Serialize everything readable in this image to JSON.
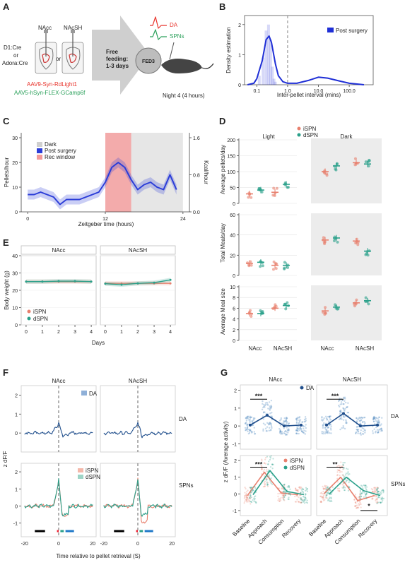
{
  "panels": {
    "A": {
      "letter": "A",
      "left_label": "D1:Cre",
      "or1": "or",
      "adora": "Adora:Cre",
      "nacc": "NAcc",
      "or2": "or",
      "nacsh": "NAcSH",
      "free_feeding": "Free\nfeeding:\n1-3 days",
      "fed3": "FED3",
      "da_label": "DA",
      "spns_label": "SPNs",
      "virus1": "AAV9-Syn-RdLight1",
      "virus2": "AAV5-hSyn-FLEX-GCamp6f",
      "night": "Night 4 (4 hours)",
      "colors": {
        "da": "#e8322a",
        "spn": "#2aa05a"
      }
    },
    "B": {
      "letter": "B"
    },
    "C": {
      "letter": "C"
    },
    "D": {
      "letter": "D"
    },
    "E": {
      "letter": "E"
    },
    "F": {
      "letter": "F"
    },
    "G": {
      "letter": "G"
    }
  },
  "chart_data": [
    {
      "id": "B",
      "type": "line",
      "xlabel": "Inter-pellet interval (mins)",
      "ylabel": "Density estimation",
      "xscale": "log",
      "xticks": [
        "0.1",
        "1.0",
        "10.0",
        "100.0"
      ],
      "yticks": [
        "0",
        "1",
        "2"
      ],
      "ylim": [
        0,
        2.3
      ],
      "legend": [
        "Post surgery"
      ],
      "legend_position": "top-right",
      "reference_line_x": 1.0,
      "series": [
        {
          "name": "Post surgery",
          "x": [
            0.05,
            0.08,
            0.1,
            0.15,
            0.2,
            0.25,
            0.3,
            0.4,
            0.5,
            0.7,
            1.0,
            2,
            5,
            10,
            20,
            50,
            100,
            300
          ],
          "values": [
            0,
            0.05,
            0.2,
            0.8,
            1.5,
            1.62,
            1.4,
            0.7,
            0.3,
            0.1,
            0.05,
            0.05,
            0.15,
            0.25,
            0.22,
            0.12,
            0.05,
            0
          ]
        }
      ],
      "color": "#1f2fd6"
    },
    {
      "id": "C",
      "type": "line",
      "xlabel": "Zeitgeber time (hours)",
      "ylabel": "Pellets/hour",
      "y2label": "Kcal/hour",
      "xticks": [
        "0",
        "12",
        "24"
      ],
      "yticks": [
        "0",
        "10",
        "20",
        "30"
      ],
      "y2ticks": [
        "0.0",
        "0.8",
        "1.6"
      ],
      "xlim": [
        0,
        24
      ],
      "ylim": [
        0,
        30
      ],
      "legend": [
        "Dark",
        "Post surgery",
        "Rec window"
      ],
      "legend_position": "top-left",
      "shaded_dark": [
        12,
        24
      ],
      "rec_window": [
        12,
        16
      ],
      "series": [
        {
          "name": "Post surgery",
          "x": [
            0,
            1,
            2,
            3,
            4,
            5,
            6,
            7,
            8,
            9,
            10,
            11,
            12,
            13,
            14,
            15,
            16,
            17,
            18,
            19,
            20,
            21,
            22,
            23
          ],
          "values": [
            7,
            7,
            8,
            7,
            6,
            3,
            5,
            5,
            5,
            6,
            7,
            8,
            12,
            18,
            20,
            18,
            13,
            9,
            11,
            12,
            10,
            9,
            15,
            9
          ]
        }
      ],
      "color": "#2b3dd8"
    },
    {
      "id": "D",
      "type": "scatter",
      "legend": [
        "iSPN",
        "dSPN"
      ],
      "columns": [
        "Light",
        "Dark"
      ],
      "xticks": [
        "NAcc",
        "NAcSH"
      ],
      "rows": [
        {
          "ylabel": "Average pellets/day",
          "yticks": [
            "0",
            "50",
            "100",
            "150",
            "200"
          ],
          "ylim": [
            0,
            200
          ],
          "light": {
            "iSPN": [
              30,
              35
            ],
            "dSPN": [
              42,
              60
            ]
          },
          "dark": {
            "iSPN": [
              100,
              128
            ],
            "dSPN": [
              118,
              124
            ]
          }
        },
        {
          "ylabel": "Total Meals/day",
          "yticks": [
            "0",
            "20",
            "40",
            "60"
          ],
          "ylim": [
            0,
            60
          ],
          "light": {
            "iSPN": [
              12,
              10
            ],
            "dSPN": [
              13,
              10
            ]
          },
          "dark": {
            "iSPN": [
              35,
              34
            ],
            "dSPN": [
              37,
              24
            ]
          }
        },
        {
          "ylabel": "Average Meal size",
          "yticks": [
            "0",
            "2",
            "4",
            "6",
            "8",
            "10"
          ],
          "ylim": [
            0,
            10
          ],
          "light": {
            "iSPN": [
              5,
              6
            ],
            "dSPN": [
              5,
              6.5
            ]
          },
          "dark": {
            "iSPN": [
              5.5,
              7
            ],
            "dSPN": [
              6.2,
              7.4
            ]
          }
        }
      ],
      "colors": {
        "iSPN": "#e8806e",
        "dSPN": "#2aa08a"
      }
    },
    {
      "id": "E",
      "type": "line",
      "ylabel": "Body weight (g)",
      "xlabel": "Days",
      "xticks": [
        "0",
        "2",
        "4"
      ],
      "yticks": [
        "0",
        "10",
        "20",
        "30",
        "40"
      ],
      "ylim": [
        0,
        40
      ],
      "subplots": [
        "NAcc",
        "NAcSH"
      ],
      "legend": [
        "iSPN",
        "dSPN"
      ],
      "series": [
        {
          "subplot": "NAcc",
          "name": "iSPN",
          "x": [
            0,
            1,
            2,
            3,
            4
          ],
          "values": [
            25,
            25,
            25,
            25,
            25
          ]
        },
        {
          "subplot": "NAcc",
          "name": "dSPN",
          "x": [
            0,
            1,
            2,
            3,
            4
          ],
          "values": [
            25,
            25,
            25.3,
            25.3,
            25
          ]
        },
        {
          "subplot": "NAcSH",
          "name": "iSPN",
          "x": [
            0,
            1,
            2,
            3,
            4
          ],
          "values": [
            24,
            24,
            24,
            24,
            24
          ]
        },
        {
          "subplot": "NAcSH",
          "name": "dSPN",
          "x": [
            0,
            1,
            2,
            3,
            4
          ],
          "values": [
            23.8,
            23.2,
            24,
            24.4,
            26
          ]
        }
      ]
    },
    {
      "id": "F",
      "type": "line",
      "ylabel": "z dF/F",
      "xlabel": "Time relative to pellet retrieval (S)",
      "xticks": [
        "-20",
        "0",
        "20"
      ],
      "subplots": [
        "NAcc",
        "NAcSH"
      ],
      "row_labels": [
        "DA",
        "SPNs"
      ],
      "top_yticks": [
        "0",
        "1",
        "2"
      ],
      "bottom_yticks": [
        "-1",
        "0",
        "1",
        "2"
      ],
      "legend_top": [
        "DA"
      ],
      "legend_bottom": [
        "iSPN",
        "dSPN"
      ]
    },
    {
      "id": "G",
      "type": "scatter",
      "ylabel": "z dF/F (Average activity)",
      "subplots": [
        "NAcc",
        "NAcSH"
      ],
      "row_labels": [
        "DA",
        "SPNs"
      ],
      "categories": [
        "Baseline",
        "Approach",
        "Consumption",
        "Recovery"
      ],
      "top_yticks": [
        "-1",
        "0",
        "1",
        "2"
      ],
      "bottom_yticks": [
        "-1",
        "0",
        "1",
        "2"
      ],
      "legend_top": [
        "DA"
      ],
      "legend_bottom": [
        "iSPN",
        "dSPN"
      ],
      "sig": [
        "***",
        "***",
        "***",
        "**",
        "*"
      ],
      "series": [
        {
          "subplot": "NAcc",
          "name": "DA",
          "values": [
            0.05,
            0.6,
            0.0,
            0.05
          ]
        },
        {
          "subplot": "NAcSH",
          "name": "DA",
          "values": [
            0.05,
            0.7,
            0.0,
            0.05
          ]
        },
        {
          "subplot": "NAcc",
          "name": "iSPN",
          "values": [
            -0.1,
            1.3,
            0.05,
            -0.05
          ]
        },
        {
          "subplot": "NAcc",
          "name": "dSPN",
          "values": [
            -0.05,
            1.4,
            0.15,
            -0.05
          ]
        },
        {
          "subplot": "NAcSH",
          "name": "iSPN",
          "values": [
            0.0,
            1.0,
            -0.4,
            -0.1
          ]
        },
        {
          "subplot": "NAcSH",
          "name": "dSPN",
          "values": [
            0.0,
            1.0,
            0.2,
            -0.1
          ]
        }
      ]
    }
  ]
}
